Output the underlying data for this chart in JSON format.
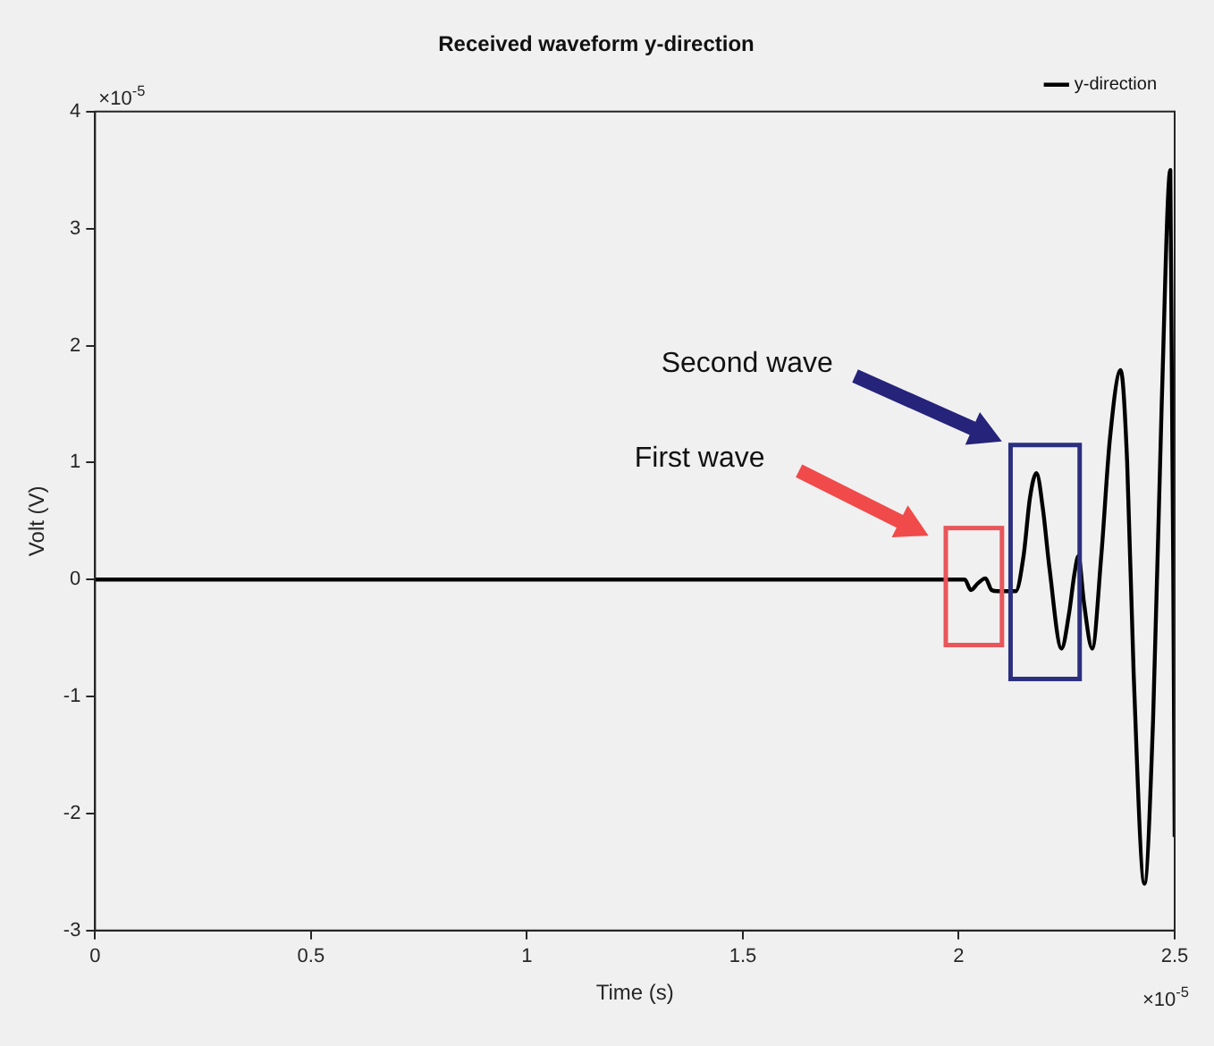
{
  "chart_data": {
    "type": "line",
    "title": "Received waveform y-direction",
    "xlabel": "Time (s)",
    "ylabel": "Volt (V)",
    "annotations": [
      "×10$^{-5}$",
      "×10$^{-5}$",
      "First wave",
      "Second wave"
    ],
    "xlim": [
      0,
      2.5
    ],
    "xticks": [
      0,
      0.5,
      1,
      1.5,
      2,
      2.5
    ],
    "ylim": [
      -3,
      4
    ],
    "yticks": [
      -3,
      -2,
      -1,
      0,
      1,
      2,
      3,
      4
    ],
    "grid": false,
    "legend": "top right",
    "marker": "none",
    "line_style": "solid",
    "series": [
      {
        "name": "y-direction",
        "color": "#000000",
        "x": [
          0,
          1.0,
          2.014,
          2.028,
          2.045,
          2.062,
          2.076,
          2.09,
          2.132,
          2.15,
          2.165,
          2.18,
          2.195,
          2.21,
          2.238,
          2.255,
          2.268,
          2.277,
          2.29,
          2.309,
          2.33,
          2.35,
          2.375,
          2.39,
          2.405,
          2.43,
          2.45,
          2.47,
          2.49,
          2.5
        ],
        "values": [
          0,
          0,
          0,
          -0.09,
          -0.03,
          0.01,
          -0.09,
          -0.1,
          -0.1,
          0.2,
          0.7,
          0.91,
          0.6,
          0.1,
          -0.59,
          -0.3,
          0.05,
          0.2,
          -0.2,
          -0.59,
          0.2,
          1.2,
          1.79,
          1.0,
          -0.8,
          -2.6,
          -1.2,
          1.5,
          3.5,
          -2.2
        ]
      }
    ]
  }
}
